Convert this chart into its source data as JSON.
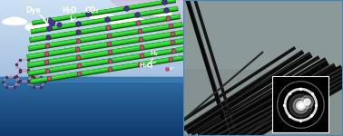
{
  "fig_width": 3.78,
  "fig_height": 1.5,
  "dpi": 100,
  "left_panel": {
    "rod_color": "#22cc22",
    "rod_shadow_color": "#116611",
    "node_color_dark": "#443388",
    "node_color_pink": "#bb5577",
    "molecule_color": "#cc88aa",
    "molecule_dark": "#443355",
    "label_dye": "Dye",
    "label_h2o_top": "H₂O",
    "label_co2": "CO₂",
    "label_h2": "H₂",
    "label_h2o_bot": "H₂O"
  },
  "right_panel": {
    "bg_color": "#7a8a8a",
    "border_color": "#4477aa"
  }
}
